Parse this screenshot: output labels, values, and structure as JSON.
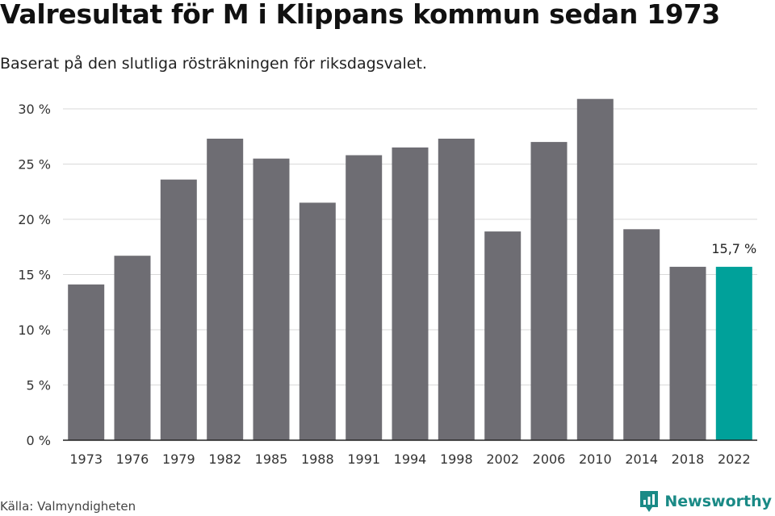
{
  "header": {
    "title": "Valresultat för M i Klippans kommun sedan 1973",
    "subtitle": "Baserat på den slutliga rösträkningen för riksdagsvalet."
  },
  "footer": {
    "source": "Källa: Valmyndigheten",
    "brand": "Newsworthy",
    "brand_icon": "newsworthy-logo-icon"
  },
  "colors": {
    "bar": "#6e6d73",
    "highlight": "#00a19a",
    "grid": "#d9d9d9",
    "axis": "#222222",
    "brand": "#1a8a86"
  },
  "chart_data": {
    "type": "bar",
    "categories": [
      "1973",
      "1976",
      "1979",
      "1982",
      "1985",
      "1988",
      "1991",
      "1994",
      "1998",
      "2002",
      "2006",
      "2010",
      "2014",
      "2018",
      "2022"
    ],
    "values": [
      14.1,
      16.7,
      23.6,
      27.3,
      25.5,
      21.5,
      25.8,
      26.5,
      27.3,
      18.9,
      27.0,
      30.9,
      19.1,
      15.7,
      15.7
    ],
    "highlight_index": 14,
    "data_labels": [
      {
        "index": 14,
        "text": "15,7 %"
      }
    ],
    "ylim": [
      0,
      30
    ],
    "yticks": [
      0,
      5,
      10,
      15,
      20,
      25,
      30
    ],
    "ytick_labels": [
      "0 %",
      "5 %",
      "10 %",
      "15 %",
      "20 %",
      "25 %",
      "30 %"
    ],
    "xlabel": "",
    "ylabel": "",
    "grid": true,
    "legend": "none"
  }
}
